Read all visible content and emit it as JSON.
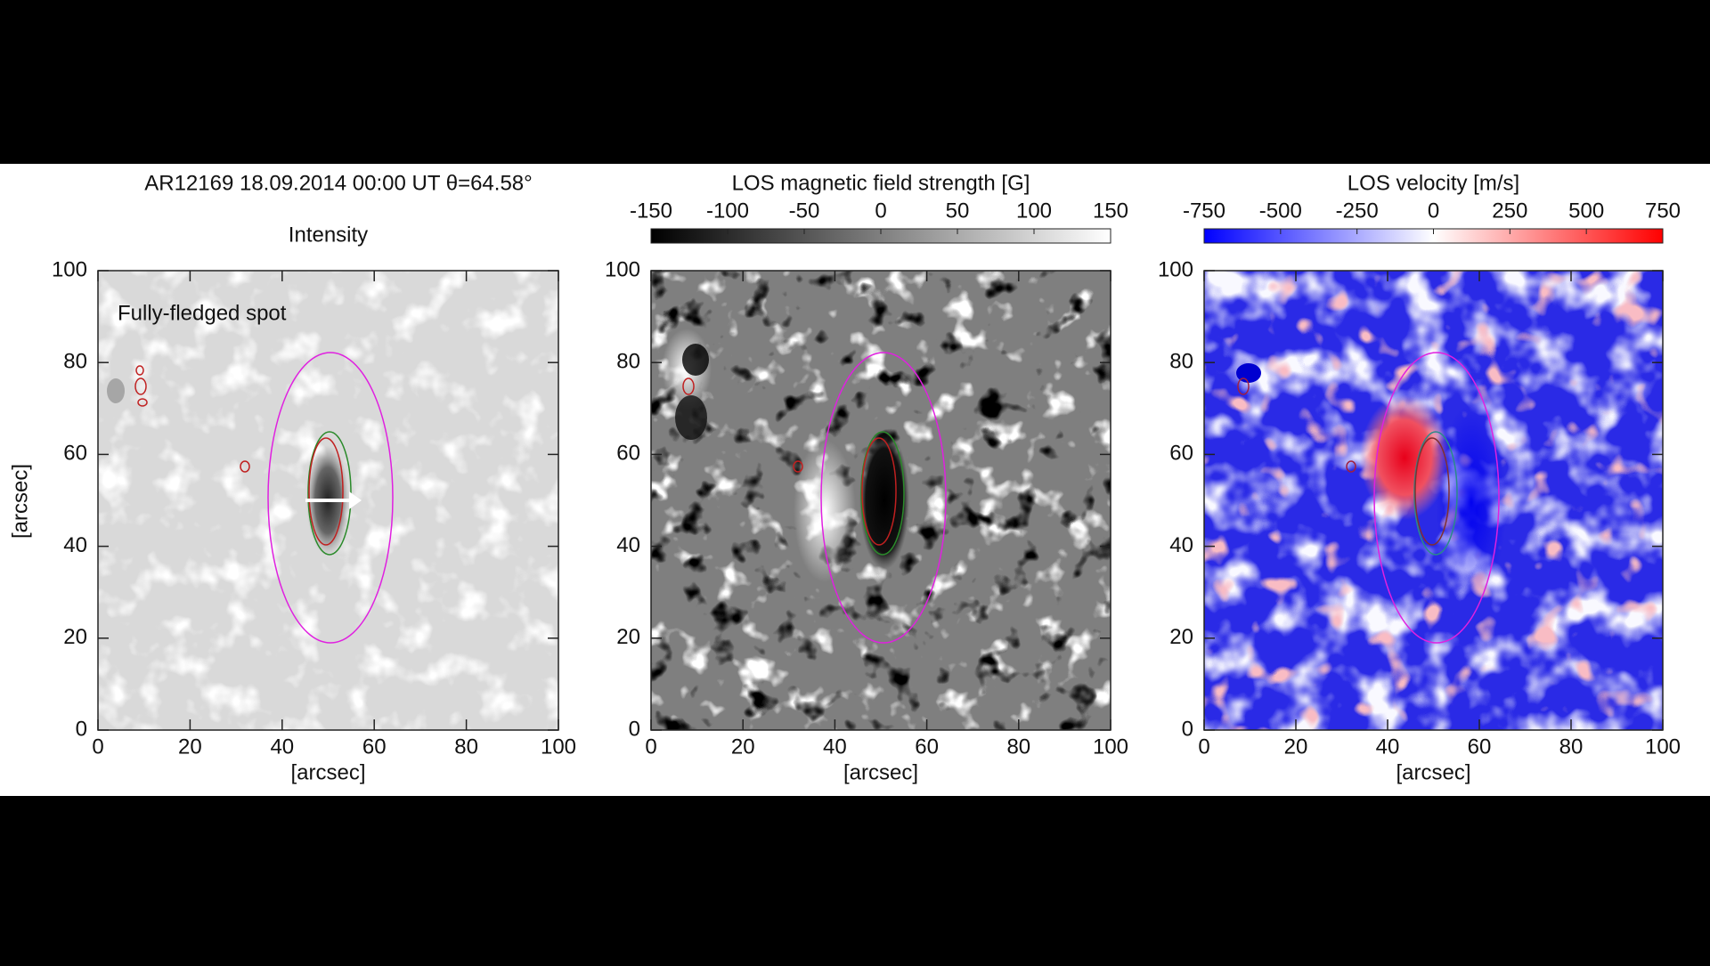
{
  "chart_data": [
    {
      "type": "image",
      "title": "AR12169  18.09.2014 00:00 UT  θ=64.58°",
      "subtitle": "Intensity",
      "annotation": "Fully-fledged spot",
      "xlabel": "[arcsec]",
      "ylabel": "[arcsec]",
      "xlim": [
        0,
        100
      ],
      "ylim": [
        0,
        100
      ],
      "xticks": [
        0,
        20,
        40,
        60,
        80,
        100
      ],
      "yticks": [
        0,
        20,
        40,
        60,
        80,
        100
      ]
    },
    {
      "type": "image",
      "title": "LOS magnetic field strength [G]",
      "xlabel": "[arcsec]",
      "xlim": [
        0,
        100
      ],
      "ylim": [
        0,
        100
      ],
      "xticks": [
        0,
        20,
        40,
        60,
        80,
        100
      ],
      "yticks": [
        0,
        20,
        40,
        60,
        80,
        100
      ],
      "colorbar": {
        "lim": [
          -150,
          150
        ],
        "ticks": [
          -150,
          -100,
          -50,
          0,
          50,
          100,
          150
        ],
        "colors": [
          "#000000",
          "#ffffff"
        ]
      }
    },
    {
      "type": "image",
      "title": "LOS velocity [m/s]",
      "xlabel": "[arcsec]",
      "xlim": [
        0,
        100
      ],
      "ylim": [
        0,
        100
      ],
      "xticks": [
        0,
        20,
        40,
        60,
        80,
        100
      ],
      "yticks": [
        0,
        20,
        40,
        60,
        80,
        100
      ],
      "colorbar": {
        "lim": [
          -750,
          750
        ],
        "ticks": [
          -750,
          -500,
          -250,
          0,
          250,
          500,
          750
        ],
        "colors": [
          "#0000ff",
          "#ffffff",
          "#ff0000"
        ]
      }
    }
  ]
}
